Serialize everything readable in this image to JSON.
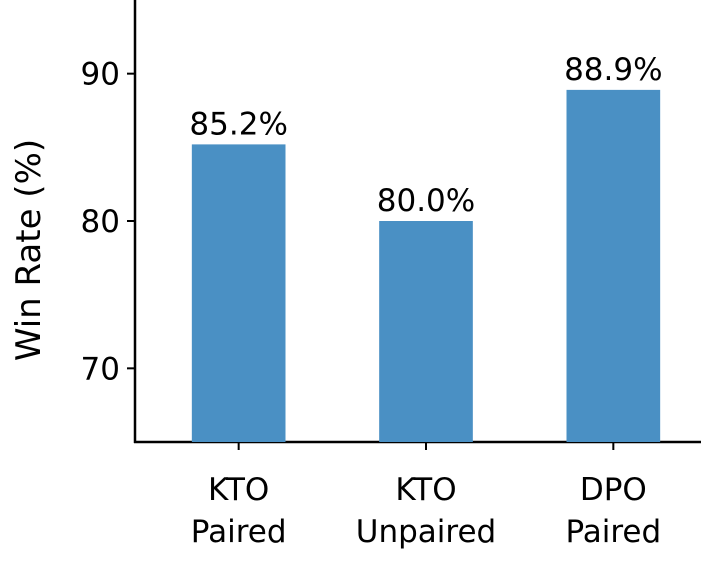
{
  "chart_data": {
    "type": "bar",
    "categories": [
      "KTO Paired",
      "KTO Unpaired",
      "DPO Paired"
    ],
    "values": [
      85.2,
      80.0,
      88.9
    ],
    "value_labels": [
      "85.2%",
      "80.0%",
      "88.9%"
    ],
    "color": "#4a90c4",
    "y_label": "Win Rate (%)",
    "ylim": [
      65,
      95
    ],
    "yticks": [
      70,
      80,
      90
    ]
  }
}
